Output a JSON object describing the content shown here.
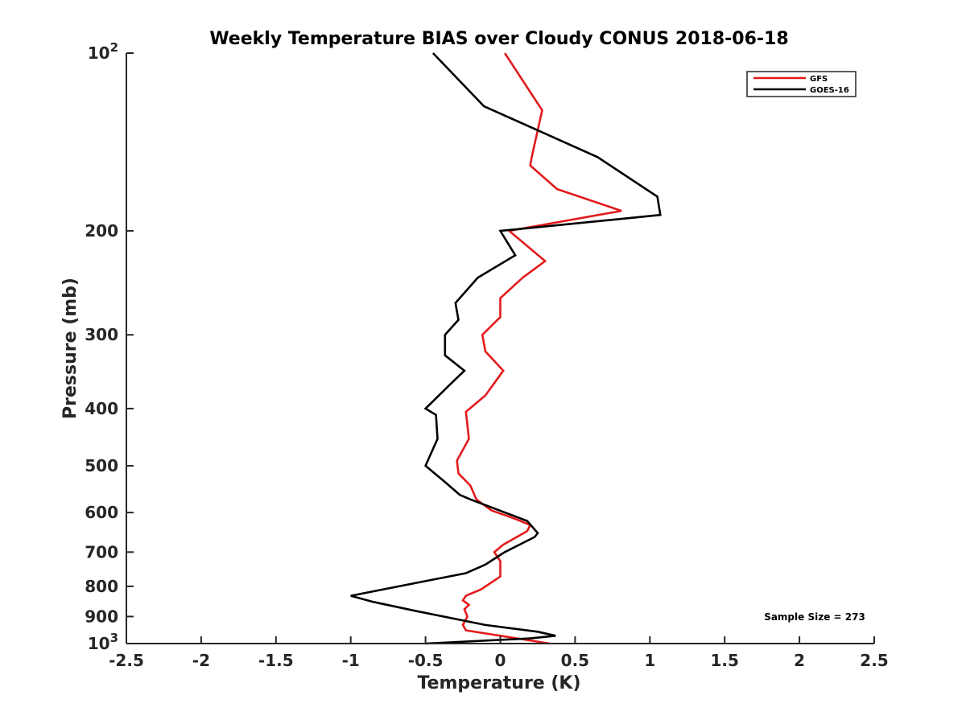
{
  "chart_data": {
    "type": "line",
    "title": "Weekly Temperature BIAS over Cloudy CONUS 2018-06-18",
    "xlabel": "Temperature (K)",
    "ylabel": "Pressure (mb)",
    "xlim": [
      -2.5,
      2.5
    ],
    "ylim": [
      100,
      1000
    ],
    "y_scale": "log",
    "y_reversed": true,
    "grid": false,
    "legend_position": "top-right",
    "x_ticks": [
      {
        "value": -2.5,
        "label": "-2.5"
      },
      {
        "value": -2,
        "label": "-2"
      },
      {
        "value": -1.5,
        "label": "-1.5"
      },
      {
        "value": -1,
        "label": "-1"
      },
      {
        "value": -0.5,
        "label": "-0.5"
      },
      {
        "value": 0,
        "label": "0"
      },
      {
        "value": 0.5,
        "label": "0.5"
      },
      {
        "value": 1,
        "label": "1"
      },
      {
        "value": 1.5,
        "label": "1.5"
      },
      {
        "value": 2,
        "label": "2"
      },
      {
        "value": 2.5,
        "label": "2.5"
      }
    ],
    "y_ticks": [
      {
        "value": 100,
        "base": "10",
        "exp": "2"
      },
      {
        "value": 200,
        "label": "200"
      },
      {
        "value": 300,
        "label": "300"
      },
      {
        "value": 400,
        "label": "400"
      },
      {
        "value": 500,
        "label": "500"
      },
      {
        "value": 600,
        "label": "600"
      },
      {
        "value": 700,
        "label": "700"
      },
      {
        "value": 800,
        "label": "800"
      },
      {
        "value": 900,
        "label": "900"
      },
      {
        "value": 1000,
        "base": "10",
        "exp": "3"
      }
    ],
    "series": [
      {
        "name": "GFS",
        "color": "#e31a1c",
        "points": [
          [
            0.03,
            100
          ],
          [
            0.28,
            125
          ],
          [
            0.21,
            150
          ],
          [
            0.2,
            155
          ],
          [
            0.38,
            170
          ],
          [
            0.81,
            185
          ],
          [
            0.06,
            200
          ],
          [
            0.3,
            225
          ],
          [
            0.15,
            240
          ],
          [
            0.0,
            260
          ],
          [
            0.0,
            280
          ],
          [
            -0.12,
            300
          ],
          [
            -0.1,
            320
          ],
          [
            0.02,
            345
          ],
          [
            -0.1,
            380
          ],
          [
            -0.23,
            405
          ],
          [
            -0.21,
            450
          ],
          [
            -0.29,
            490
          ],
          [
            -0.28,
            515
          ],
          [
            -0.2,
            540
          ],
          [
            -0.16,
            570
          ],
          [
            -0.06,
            595
          ],
          [
            0.1,
            615
          ],
          [
            0.2,
            630
          ],
          [
            0.18,
            645
          ],
          [
            0.02,
            680
          ],
          [
            -0.04,
            700
          ],
          [
            0.0,
            725
          ],
          [
            0.0,
            770
          ],
          [
            -0.13,
            810
          ],
          [
            -0.23,
            830
          ],
          [
            -0.25,
            845
          ],
          [
            -0.21,
            860
          ],
          [
            -0.24,
            875
          ],
          [
            -0.22,
            900
          ],
          [
            -0.25,
            930
          ],
          [
            -0.23,
            950
          ],
          [
            0.33,
            1000
          ]
        ]
      },
      {
        "name": "GOES-16",
        "color": "#000000",
        "points": [
          [
            -0.45,
            100
          ],
          [
            -0.11,
            123
          ],
          [
            0.65,
            150
          ],
          [
            1.05,
            175
          ],
          [
            1.07,
            188
          ],
          [
            0.0,
            200
          ],
          [
            0.1,
            220
          ],
          [
            -0.15,
            240
          ],
          [
            -0.3,
            265
          ],
          [
            -0.28,
            283
          ],
          [
            -0.37,
            300
          ],
          [
            -0.37,
            325
          ],
          [
            -0.24,
            345
          ],
          [
            -0.34,
            365
          ],
          [
            -0.5,
            400
          ],
          [
            -0.43,
            410
          ],
          [
            -0.42,
            450
          ],
          [
            -0.5,
            500
          ],
          [
            -0.38,
            530
          ],
          [
            -0.27,
            560
          ],
          [
            -0.2,
            570
          ],
          [
            0.18,
            620
          ],
          [
            0.25,
            650
          ],
          [
            0.23,
            660
          ],
          [
            0.03,
            700
          ],
          [
            -0.1,
            735
          ],
          [
            -0.23,
            760
          ],
          [
            -0.57,
            790
          ],
          [
            -1.0,
            830
          ],
          [
            -0.85,
            850
          ],
          [
            -0.57,
            880
          ],
          [
            -0.1,
            930
          ],
          [
            0.25,
            955
          ],
          [
            0.37,
            970
          ],
          [
            0.2,
            980
          ],
          [
            -0.5,
            1000
          ]
        ]
      }
    ],
    "annotation": "Sample Size = 273"
  }
}
